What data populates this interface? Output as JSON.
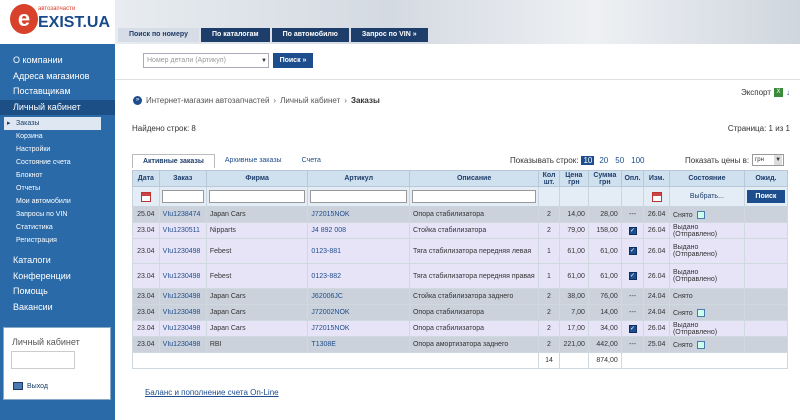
{
  "logo": {
    "letter": "e",
    "sub": "автозапчасти",
    "name": "EXIST.UA"
  },
  "header_tabs": [
    "Поиск по номеру",
    "По каталогам",
    "По автомобилю",
    "Запрос по VIN »"
  ],
  "search": {
    "placeholder": "Номер детали (Артикул)",
    "button": "Поиск »"
  },
  "sidebar": {
    "items": [
      "О компании",
      "Адреса магазинов",
      "Поставщикам",
      "Личный кабинет"
    ],
    "sub_items": [
      "Заказы",
      "Корзина",
      "Настройки",
      "Состояние счета",
      "Блокнот",
      "Отчеты",
      "Мои автомобили",
      "Запросы по VIN",
      "Статистика",
      "Регистрация"
    ],
    "items2": [
      "Каталоги",
      "Конференции",
      "Помощь",
      "Вакансии"
    ],
    "cabinet_title": "Личный кабинет",
    "logout": "Выход"
  },
  "breadcrumb": {
    "b1": "Интернет-магазин автозапчастей",
    "b2": "Личный кабинет",
    "b3": "Заказы"
  },
  "export": "Экспорт",
  "found": "Найдено строк: 8",
  "pages": "Страница: 1 из 1",
  "subtabs": [
    "Активные заказы",
    "Архивные заказы",
    "Счета"
  ],
  "show_rows": {
    "label": "Показывать строк:",
    "options": [
      "10",
      "20",
      "50",
      "100"
    ]
  },
  "prices": {
    "label": "Показать цены в:",
    "value": "грн"
  },
  "table": {
    "headers": [
      "Дата",
      "Заказ",
      "Фирма",
      "Артикул",
      "Описание",
      "Кол шт.",
      "Цена грн",
      "Сумма грн",
      "Опл.",
      "Изм.",
      "Состояние",
      "Ожид."
    ],
    "state_filter": "Выбрать...",
    "search_button": "Поиск",
    "rows": [
      {
        "date": "25.04",
        "order": "VIu1238474",
        "firm": "Japan Cars",
        "article": "J72015NOK",
        "desc": "Опора стабилизатора",
        "qty": "2",
        "price": "14,00",
        "sum": "28,00",
        "paid": "---",
        "chg": "26.04",
        "state": "Снято",
        "edit": true,
        "style": "r-gray"
      },
      {
        "date": "23.04",
        "order": "VIu1230511",
        "firm": "Nipparts",
        "article": "J4 892 008",
        "desc": "Стойка стабилизатора",
        "qty": "2",
        "price": "79,00",
        "sum": "158,00",
        "paid": "check",
        "chg": "26.04",
        "state": "Выдано (Отправлено)",
        "edit": false,
        "style": "r-lilac"
      },
      {
        "date": "23.04",
        "order": "VIu1230498",
        "firm": "Febest",
        "article": "0123-881",
        "desc": "Тяга стабилизатора передняя левая",
        "qty": "1",
        "price": "61,00",
        "sum": "61,00",
        "paid": "check",
        "chg": "26.04",
        "state": "Выдано (Отправлено)",
        "edit": false,
        "style": "r-lilac"
      },
      {
        "date": "23.04",
        "order": "VIu1230498",
        "firm": "Febest",
        "article": "0123-882",
        "desc": "Тяга стабилизатора передняя правая",
        "qty": "1",
        "price": "61,00",
        "sum": "61,00",
        "paid": "check",
        "chg": "26.04",
        "state": "Выдано (Отправлено)",
        "edit": false,
        "style": "r-lilac"
      },
      {
        "date": "23.04",
        "order": "VIu1230498",
        "firm": "Japan Cars",
        "article": "J62006JC",
        "desc": "Стойка стабилизатора заднего",
        "qty": "2",
        "price": "38,00",
        "sum": "76,00",
        "paid": "---",
        "chg": "24.04",
        "state": "Снято",
        "edit": false,
        "style": "r-gray"
      },
      {
        "date": "23.04",
        "order": "VIu1230498",
        "firm": "Japan Cars",
        "article": "J72002NOK",
        "desc": "Опора стабилизатора",
        "qty": "2",
        "price": "7,00",
        "sum": "14,00",
        "paid": "---",
        "chg": "24.04",
        "state": "Снято",
        "edit": true,
        "style": "r-gray"
      },
      {
        "date": "23.04",
        "order": "VIu1230498",
        "firm": "Japan Cars",
        "article": "J72015NOK",
        "desc": "Опора стабилизатора",
        "qty": "2",
        "price": "17,00",
        "sum": "34,00",
        "paid": "check",
        "chg": "26.04",
        "state": "Выдано (Отправлено)",
        "edit": false,
        "style": "r-lilac"
      },
      {
        "date": "23.04",
        "order": "VIu1230498",
        "firm": "RBI",
        "article": "T1308E",
        "desc": "Опора амортизатора заднего",
        "qty": "2",
        "price": "221,00",
        "sum": "442,00",
        "paid": "---",
        "chg": "25.04",
        "state": "Снято",
        "edit": true,
        "style": "r-gray"
      }
    ],
    "total_qty": "14",
    "total_sum": "874,00"
  },
  "balance_link": "Баланс и пополнение счета On-Line"
}
